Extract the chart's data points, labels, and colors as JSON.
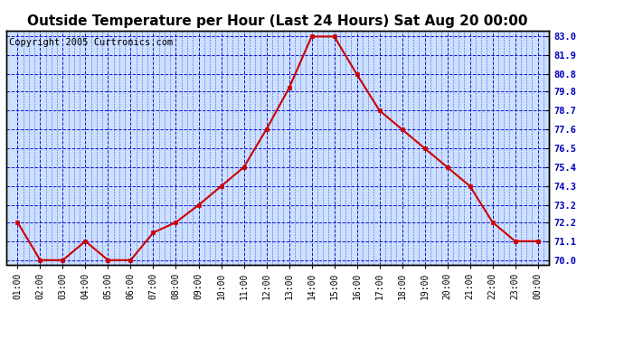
{
  "title": "Outside Temperature per Hour (Last 24 Hours) Sat Aug 20 00:00",
  "copyright": "Copyright 2005 Curtronics.com",
  "x_labels": [
    "01:00",
    "02:00",
    "03:00",
    "04:00",
    "05:00",
    "06:00",
    "07:00",
    "08:00",
    "09:00",
    "10:00",
    "11:00",
    "12:00",
    "13:00",
    "14:00",
    "15:00",
    "16:00",
    "17:00",
    "18:00",
    "19:00",
    "20:00",
    "21:00",
    "22:00",
    "23:00",
    "00:00"
  ],
  "y_values": [
    72.2,
    70.0,
    70.0,
    71.1,
    70.0,
    70.0,
    71.6,
    72.2,
    73.2,
    74.3,
    75.4,
    77.6,
    80.0,
    83.0,
    83.0,
    80.8,
    78.7,
    77.6,
    76.5,
    75.4,
    74.3,
    72.2,
    71.1,
    71.1
  ],
  "y_ticks": [
    70.0,
    71.1,
    72.2,
    73.2,
    74.3,
    75.4,
    76.5,
    77.6,
    78.7,
    79.8,
    80.8,
    81.9,
    83.0
  ],
  "ylim": [
    69.75,
    83.35
  ],
  "line_color": "#cc0000",
  "marker_color": "#cc0000",
  "bg_color": "#ffffff",
  "plot_bg_color": "#cce0ff",
  "grid_color": "#0000cc",
  "title_fontsize": 11,
  "copyright_fontsize": 7.5
}
